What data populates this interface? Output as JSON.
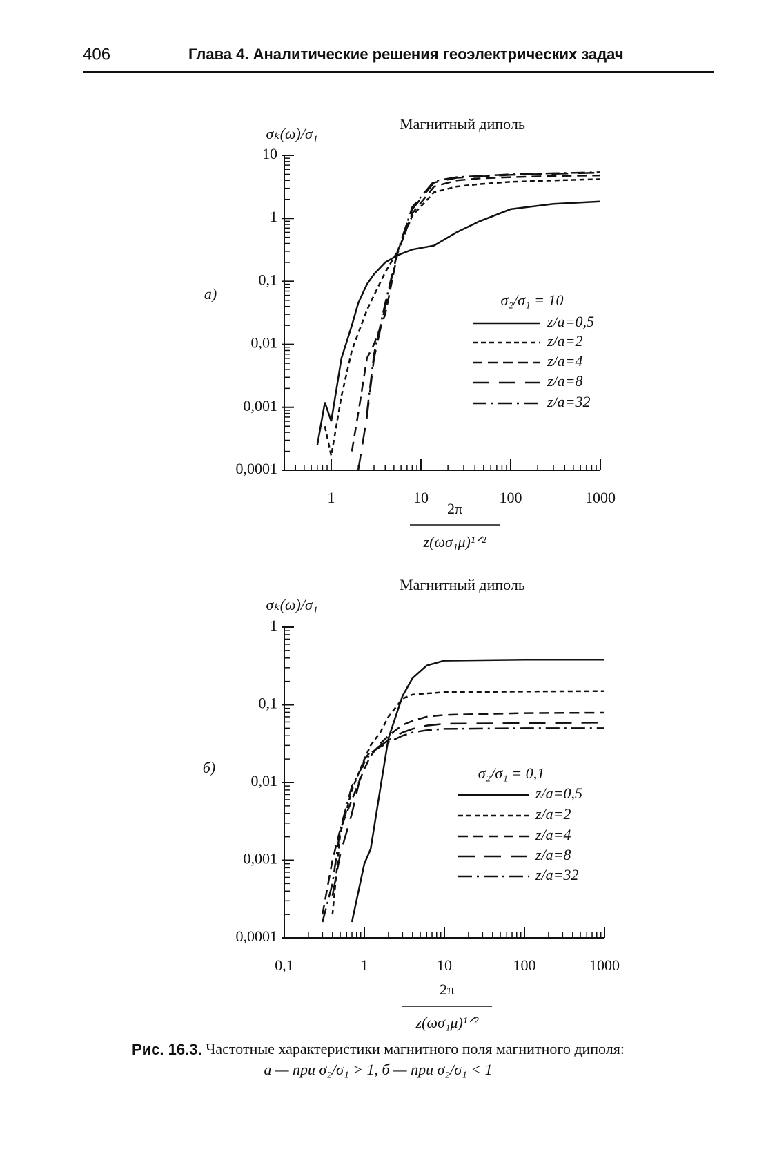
{
  "header": {
    "page_number": "406",
    "title": "Глава 4. Аналитические решения геоэлектрических задач"
  },
  "chart_data": [
    {
      "type": "line",
      "panel_label": "а)",
      "title": "Магнитный диполь",
      "y_label": "σₖ(ω)/σ₁",
      "x_label": {
        "numerator": "2π",
        "denominator": "z(ωσ₁μ)¹ᐟ²"
      },
      "log_x": true,
      "log_y": true,
      "legend_title": "σ₂/σ₁ = 10",
      "legend_position": "right",
      "xlim": [
        0.3,
        1000
      ],
      "xticks": [
        1,
        10,
        100,
        1000
      ],
      "ylim": [
        0.0001,
        10
      ],
      "yticks": [
        10,
        1,
        {
          "value": 0.1,
          "label": "0,1"
        },
        {
          "value": 0.01,
          "label": "0,01"
        },
        {
          "value": 0.001,
          "label": "0,001"
        },
        {
          "value": 0.0001,
          "label": "0,0001"
        }
      ],
      "x": [
        0.7,
        0.85,
        1,
        1.3,
        1.7,
        2,
        2.5,
        3,
        4,
        5.5,
        8,
        14,
        25,
        45,
        100,
        300,
        1000
      ],
      "series": [
        {
          "name": "z/a=0,5",
          "color": "#111111",
          "dash": "solid",
          "values": [
            0.00025,
            0.0012,
            0.0006,
            0.006,
            0.02,
            0.045,
            0.09,
            0.13,
            0.2,
            0.26,
            0.32,
            0.37,
            0.6,
            0.9,
            1.4,
            1.7,
            1.85
          ]
        },
        {
          "name": "z/a=2",
          "color": "#111111",
          "dash": "short-dash",
          "values": [
            null,
            0.0005,
            0.00017,
            0.0015,
            0.008,
            0.015,
            0.035,
            0.06,
            0.14,
            0.3,
            1.1,
            2.6,
            3.2,
            3.5,
            3.8,
            4.0,
            4.2
          ]
        },
        {
          "name": "z/a=4",
          "color": "#111111",
          "dash": "dash",
          "values": [
            null,
            null,
            null,
            null,
            0.0002,
            0.0008,
            0.006,
            0.01,
            0.03,
            0.28,
            1.2,
            3.2,
            4.0,
            4.3,
            4.5,
            4.7,
            4.8
          ]
        },
        {
          "name": "z/a=8",
          "color": "#111111",
          "dash": "long-dash",
          "values": [
            null,
            null,
            null,
            null,
            null,
            0.0001,
            0.0007,
            0.006,
            0.04,
            0.3,
            1.4,
            3.7,
            4.4,
            4.6,
            4.9,
            5.1,
            5.3
          ]
        },
        {
          "name": "z/a=32",
          "color": "#111111",
          "dash": "dash-dot",
          "values": [
            null,
            null,
            null,
            null,
            null,
            null,
            0.0008,
            0.007,
            0.045,
            0.3,
            1.5,
            3.9,
            4.5,
            4.7,
            5.0,
            5.2,
            5.4
          ]
        }
      ]
    },
    {
      "type": "line",
      "panel_label": "б)",
      "title": "Магнитный диполь",
      "y_label": "σₖ(ω)/σ₁",
      "x_label": {
        "numerator": "2π",
        "denominator": "z(ωσ₁μ)¹ᐟ²"
      },
      "log_x": true,
      "log_y": true,
      "legend_title": "σ₂/σ₁ = 0,1",
      "legend_position": "right",
      "xlim": [
        0.1,
        1000
      ],
      "xticks": [
        {
          "value": 0.1,
          "label": "0,1"
        },
        1,
        10,
        100,
        1000
      ],
      "ylim": [
        0.0001,
        1
      ],
      "yticks": [
        1,
        {
          "value": 0.1,
          "label": "0,1"
        },
        {
          "value": 0.01,
          "label": "0,01"
        },
        {
          "value": 0.001,
          "label": "0,001"
        },
        {
          "value": 0.0001,
          "label": "0,0001"
        }
      ],
      "x": [
        0.3,
        0.4,
        0.5,
        0.7,
        1,
        1.2,
        1.6,
        2,
        3,
        4,
        6,
        10,
        100,
        1000
      ],
      "series": [
        {
          "name": "z/a=0,5",
          "color": "#111111",
          "dash": "solid",
          "values": [
            null,
            null,
            null,
            0.00016,
            0.0009,
            0.0014,
            0.009,
            0.037,
            0.13,
            0.22,
            0.32,
            0.37,
            0.38,
            0.38
          ]
        },
        {
          "name": "z/a=2",
          "color": "#111111",
          "dash": "short-dash",
          "values": [
            null,
            0.0002,
            0.0022,
            0.008,
            0.02,
            0.03,
            0.045,
            0.07,
            0.12,
            0.135,
            0.14,
            0.145,
            0.148,
            0.15
          ]
        },
        {
          "name": "z/a=4",
          "color": "#111111",
          "dash": "dash",
          "values": [
            0.0002,
            0.001,
            0.0025,
            0.006,
            0.015,
            0.022,
            0.032,
            0.04,
            0.055,
            0.062,
            0.07,
            0.074,
            0.078,
            0.079
          ]
        },
        {
          "name": "z/a=8",
          "color": "#111111",
          "dash": "long-dash",
          "values": [
            null,
            0.00035,
            0.0012,
            0.004,
            0.02,
            0.025,
            0.03,
            0.035,
            0.044,
            0.049,
            0.054,
            0.057,
            0.058,
            0.059
          ]
        },
        {
          "name": "z/a=32",
          "color": "#111111",
          "dash": "dash-dot",
          "values": [
            0.00016,
            0.0005,
            0.0025,
            0.009,
            0.018,
            0.024,
            0.029,
            0.033,
            0.04,
            0.044,
            0.047,
            0.049,
            0.05,
            0.05
          ]
        }
      ]
    }
  ],
  "caption": {
    "label": "Рис. 16.3.",
    "text": "Частотные характеристики магнитного поля магнитного диполя:",
    "line2": "а — при σ₂/σ₁ > 1, б — при σ₂/σ₁ < 1"
  }
}
